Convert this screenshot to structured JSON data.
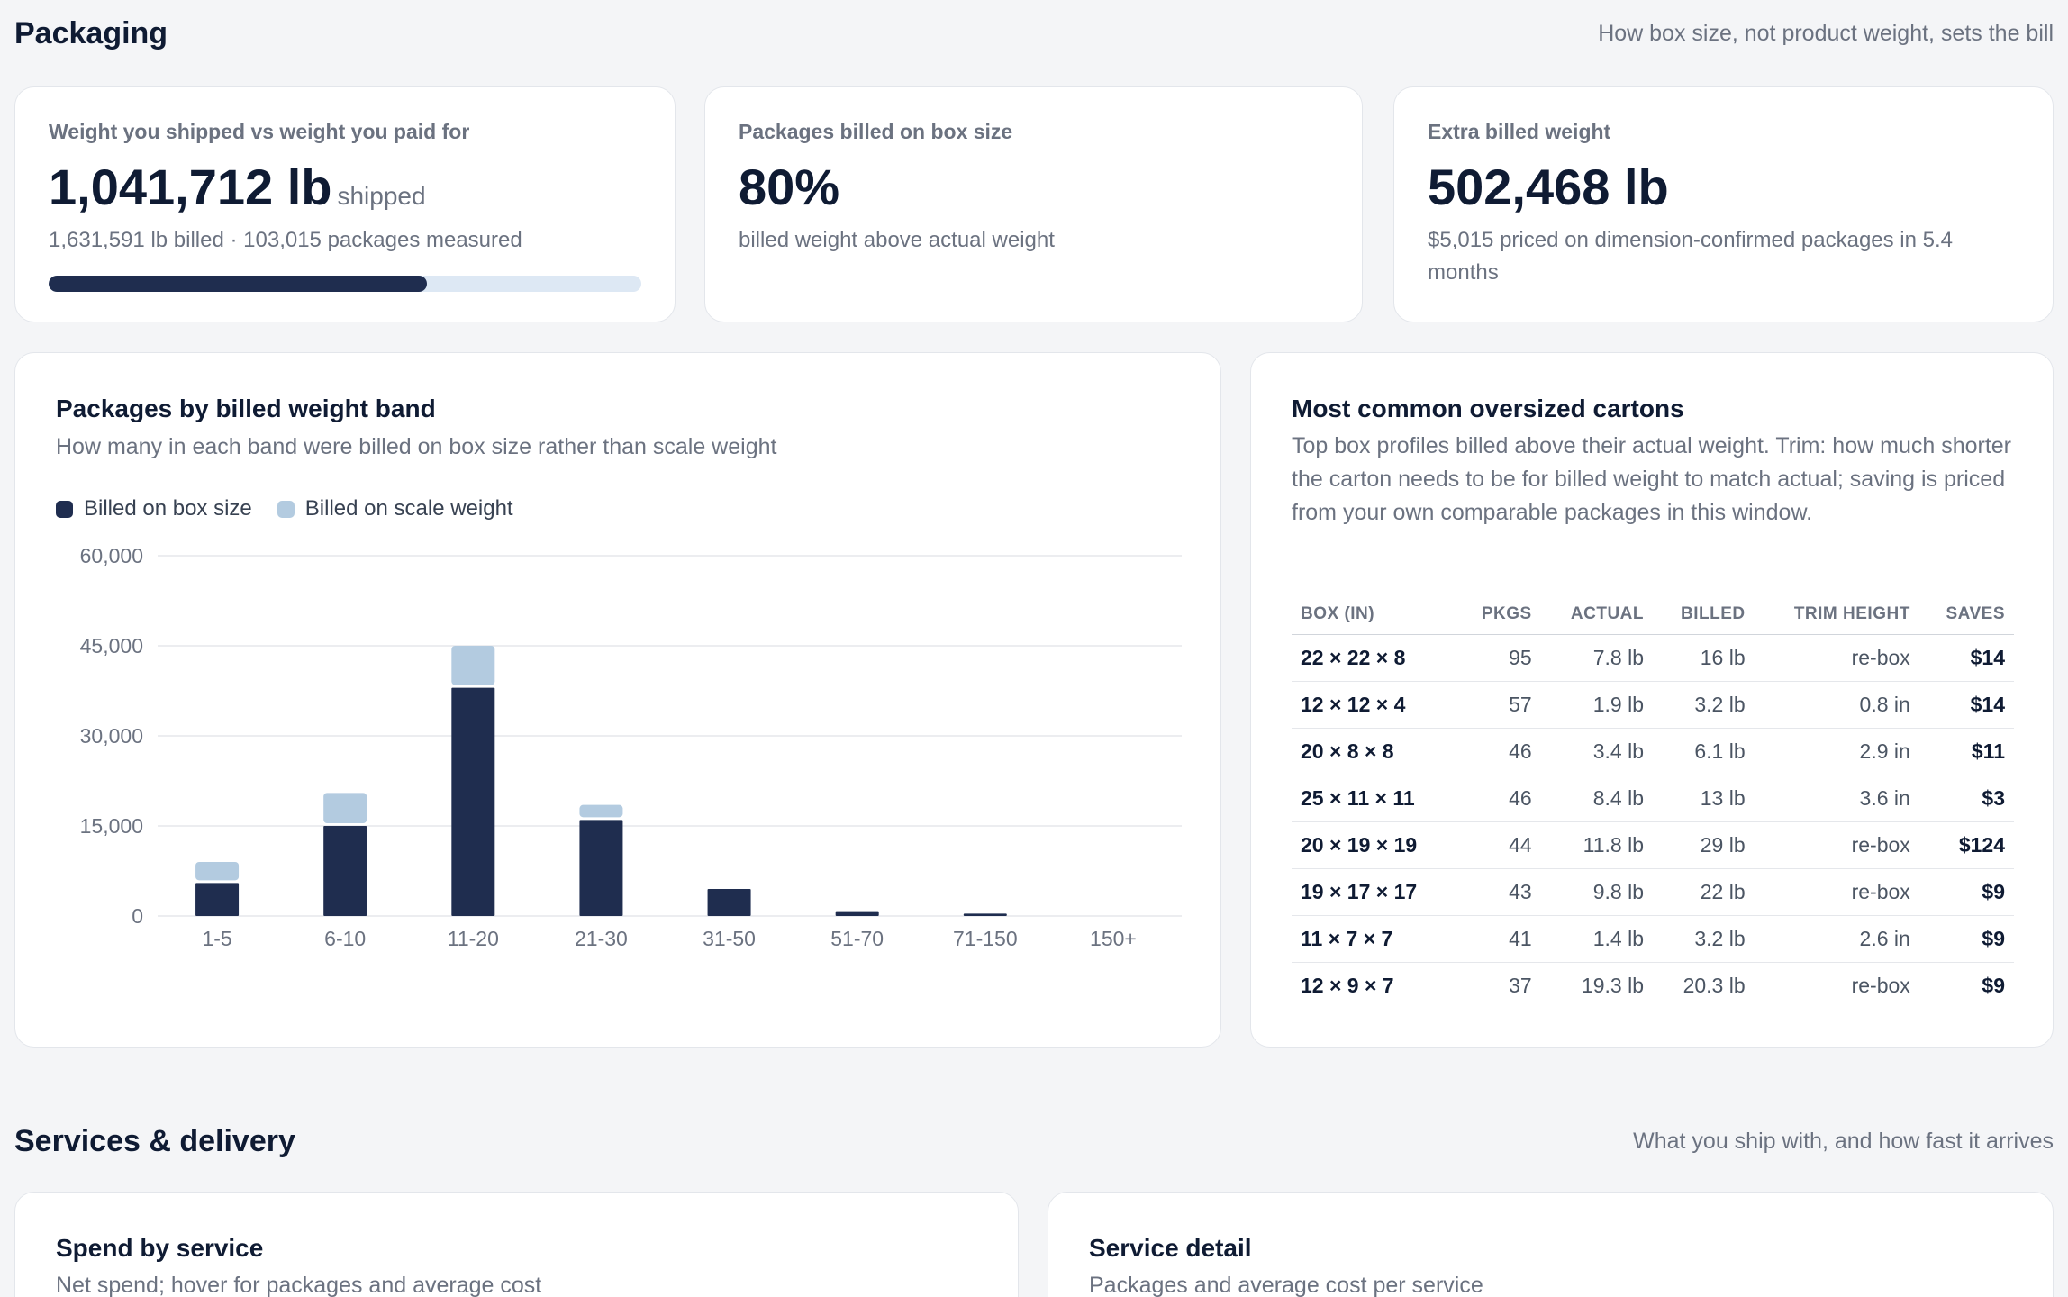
{
  "packaging": {
    "title": "Packaging",
    "subtitle": "How box size, not product weight, sets the bill",
    "kpis": {
      "weight": {
        "label": "Weight you shipped vs weight you paid for",
        "value": "1,041,712 lb",
        "unit": "shipped",
        "sub": "1,631,591 lb billed · 103,015 packages measured",
        "progress_fraction": 0.638
      },
      "box_size": {
        "label": "Packages billed on box size",
        "value": "80%",
        "sub": "billed weight above actual weight"
      },
      "extra": {
        "label": "Extra billed weight",
        "value": "502,468 lb",
        "sub": "$5,015 priced on dimension-confirmed packages in 5.4 months"
      }
    },
    "band_chart": {
      "title": "Packages by billed weight band",
      "desc": "How many in each band were billed on box size rather than scale weight",
      "legend": [
        {
          "label": "Billed on box size",
          "color": "#1f2d4f"
        },
        {
          "label": "Billed on scale weight",
          "color": "#b3cbe0"
        }
      ]
    },
    "cartons": {
      "title": "Most common oversized cartons",
      "desc": "Top box profiles billed above their actual weight. Trim: how much shorter the carton needs to be for billed weight to match actual; saving is priced from your own comparable packages in this window.",
      "columns": [
        "BOX (IN)",
        "PKGS",
        "ACTUAL",
        "BILLED",
        "TRIM HEIGHT",
        "SAVES"
      ],
      "rows": [
        [
          "22 × 22 × 8",
          "95",
          "7.8 lb",
          "16 lb",
          "re-box",
          "$14"
        ],
        [
          "12 × 12 × 4",
          "57",
          "1.9 lb",
          "3.2 lb",
          "0.8 in",
          "$14"
        ],
        [
          "20 × 8 × 8",
          "46",
          "3.4 lb",
          "6.1 lb",
          "2.9 in",
          "$11"
        ],
        [
          "25 × 11 × 11",
          "46",
          "8.4 lb",
          "13 lb",
          "3.6 in",
          "$3"
        ],
        [
          "20 × 19 × 19",
          "44",
          "11.8 lb",
          "29 lb",
          "re-box",
          "$124"
        ],
        [
          "19 × 17 × 17",
          "43",
          "9.8 lb",
          "22 lb",
          "re-box",
          "$9"
        ],
        [
          "11 × 7 × 7",
          "41",
          "1.4 lb",
          "3.2 lb",
          "2.6 in",
          "$9"
        ],
        [
          "12 × 9 × 7",
          "37",
          "19.3 lb",
          "20.3 lb",
          "re-box",
          "$9"
        ]
      ]
    }
  },
  "services": {
    "title": "Services & delivery",
    "subtitle": "What you ship with, and how fast it arrives",
    "spend": {
      "title": "Spend by service",
      "desc": "Net spend; hover for packages and average cost"
    },
    "detail": {
      "title": "Service detail",
      "desc": "Packages and average cost per service"
    }
  },
  "chart_data": {
    "type": "bar",
    "stacked": true,
    "categories": [
      "1-5",
      "6-10",
      "11-20",
      "21-30",
      "31-50",
      "51-70",
      "71-150",
      "150+"
    ],
    "series": [
      {
        "name": "Billed on box size",
        "color": "#1f2d4f",
        "values": [
          5500,
          15000,
          38000,
          16000,
          4500,
          800,
          400,
          0
        ]
      },
      {
        "name": "Billed on scale weight",
        "color": "#b3cbe0",
        "values": [
          3500,
          5500,
          7000,
          2500,
          0,
          0,
          0,
          0
        ]
      }
    ],
    "ylim": [
      0,
      60000
    ],
    "yticks": [
      0,
      15000,
      30000,
      45000,
      60000
    ],
    "ytick_labels": [
      "0",
      "15,000",
      "30,000",
      "45,000",
      "60,000"
    ],
    "grid": true,
    "legend_position": "top-left"
  }
}
